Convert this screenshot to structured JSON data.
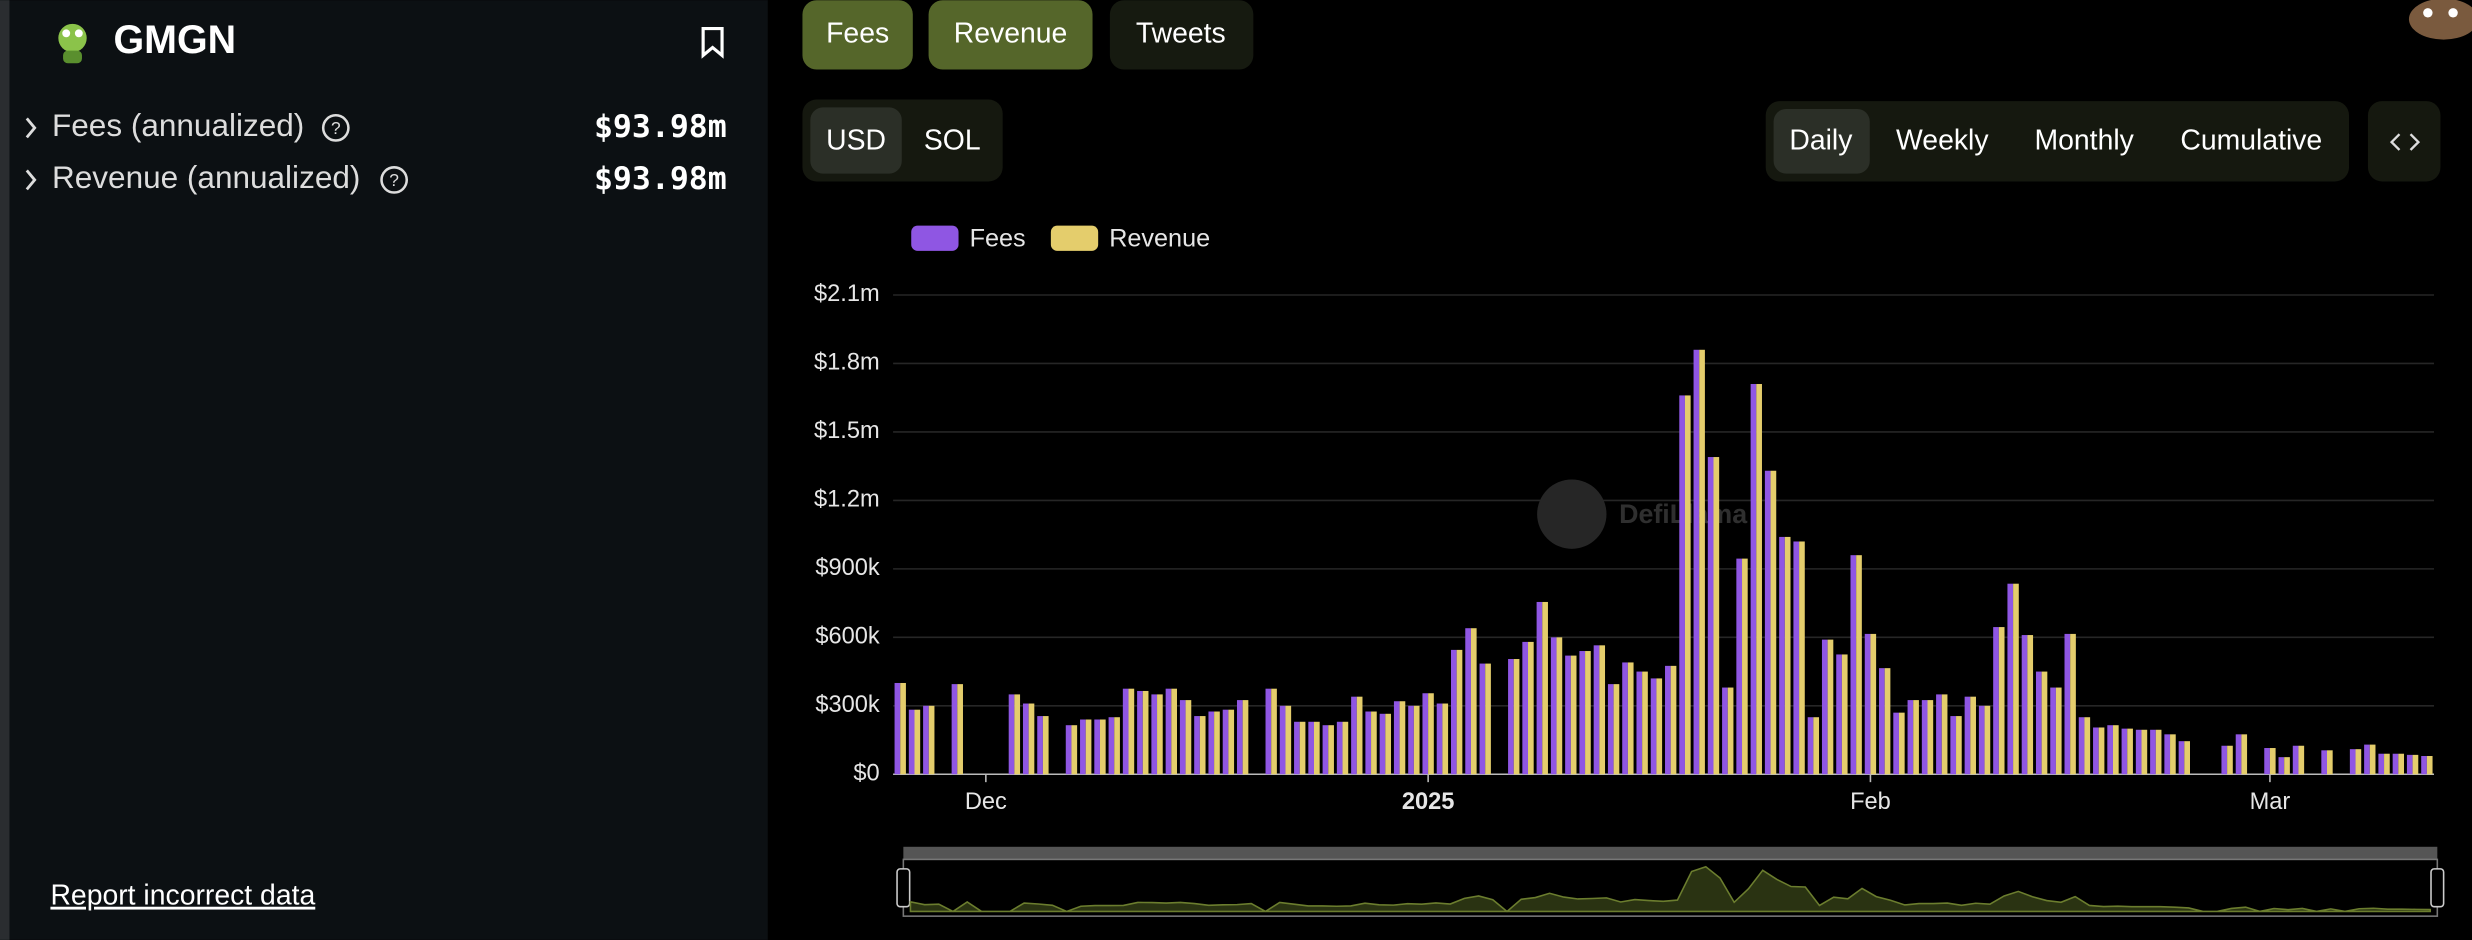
{
  "sidebar": {
    "title": "GMGN",
    "metrics": [
      {
        "label": "Fees (annualized)",
        "value": "$93.98m"
      },
      {
        "label": "Revenue (annualized)",
        "value": "$93.98m"
      }
    ],
    "report_link": "Report incorrect data"
  },
  "tabs": [
    "Fees",
    "Revenue",
    "Tweets"
  ],
  "currency_toggle": [
    "USD",
    "SOL"
  ],
  "period_toggle": [
    "Daily",
    "Weekly",
    "Monthly",
    "Cumulative"
  ],
  "watermark": "DefiLlama",
  "chart_data": {
    "type": "bar",
    "categories": [
      null,
      null,
      null,
      null,
      null,
      null,
      "Dec",
      null,
      null,
      null,
      null,
      null,
      null,
      null,
      null,
      null,
      null,
      null,
      null,
      null,
      null,
      null,
      null,
      null,
      null,
      null,
      null,
      null,
      null,
      null,
      null,
      null,
      null,
      null,
      null,
      null,
      null,
      "2025",
      null,
      null,
      null,
      null,
      null,
      null,
      null,
      null,
      null,
      null,
      null,
      null,
      null,
      null,
      null,
      null,
      null,
      null,
      null,
      null,
      null,
      null,
      null,
      null,
      null,
      null,
      null,
      null,
      null,
      null,
      "Feb",
      null,
      null,
      null,
      null,
      null,
      null,
      null,
      null,
      null,
      null,
      null,
      null,
      null,
      null,
      null,
      null,
      null,
      null,
      null,
      null,
      null,
      null,
      null,
      null,
      null,
      null,
      null,
      "Mar",
      null,
      null,
      null,
      null,
      null,
      null,
      null,
      null,
      null,
      null,
      null
    ],
    "series": [
      {
        "name": "Fees",
        "color": "#8f56e3",
        "values": [
          400000,
          283000,
          300000,
          0,
          395000,
          0,
          0,
          0,
          350000,
          310000,
          255000,
          0,
          215000,
          240000,
          240000,
          250000,
          375000,
          365000,
          350000,
          375000,
          325000,
          255000,
          275000,
          283000,
          325000,
          0,
          375000,
          300000,
          230000,
          230000,
          215000,
          230000,
          340000,
          275000,
          265000,
          320000,
          300000,
          355000,
          310000,
          545000,
          640000,
          485000,
          0,
          505000,
          580000,
          755000,
          600000,
          520000,
          540000,
          565000,
          395000,
          490000,
          450000,
          420000,
          475000,
          1660000,
          1860000,
          1390000,
          380000,
          945000,
          1710000,
          1330000,
          1040000,
          1020000,
          250000,
          590000,
          525000,
          960000,
          615000,
          465000,
          270000,
          325000,
          325000,
          350000,
          255000,
          340000,
          300000,
          645000,
          835000,
          610000,
          450000,
          380000,
          615000,
          250000,
          205000,
          215000,
          200000,
          195000,
          195000,
          175000,
          145000,
          0,
          0,
          125000,
          175000,
          0,
          115000,
          75000,
          125000,
          0,
          105000,
          0,
          110000,
          130000,
          90000,
          90000,
          85000,
          80000
        ]
      },
      {
        "name": "Revenue",
        "color": "#e4cd6c",
        "values": [
          400000,
          283000,
          300000,
          0,
          395000,
          0,
          0,
          0,
          350000,
          310000,
          255000,
          0,
          215000,
          240000,
          240000,
          250000,
          375000,
          365000,
          350000,
          375000,
          325000,
          255000,
          275000,
          283000,
          325000,
          0,
          375000,
          300000,
          230000,
          230000,
          215000,
          230000,
          340000,
          275000,
          265000,
          320000,
          300000,
          355000,
          310000,
          545000,
          640000,
          485000,
          0,
          505000,
          580000,
          755000,
          600000,
          520000,
          540000,
          565000,
          395000,
          490000,
          450000,
          420000,
          475000,
          1660000,
          1860000,
          1390000,
          380000,
          945000,
          1710000,
          1330000,
          1040000,
          1020000,
          250000,
          590000,
          525000,
          960000,
          615000,
          465000,
          270000,
          325000,
          325000,
          350000,
          255000,
          340000,
          300000,
          645000,
          835000,
          610000,
          450000,
          380000,
          615000,
          250000,
          205000,
          215000,
          200000,
          195000,
          195000,
          175000,
          145000,
          0,
          0,
          125000,
          175000,
          0,
          115000,
          75000,
          125000,
          0,
          105000,
          0,
          110000,
          130000,
          90000,
          90000,
          85000,
          80000
        ]
      }
    ],
    "ylim": [
      0,
      2100000
    ],
    "yticks": [
      {
        "value": 0,
        "label": "$0"
      },
      {
        "value": 300000,
        "label": "$300k"
      },
      {
        "value": 600000,
        "label": "$600k"
      },
      {
        "value": 900000,
        "label": "$900k"
      },
      {
        "value": 1200000,
        "label": "$1.2m"
      },
      {
        "value": 1500000,
        "label": "$1.5m"
      },
      {
        "value": 1800000,
        "label": "$1.8m"
      },
      {
        "value": 2100000,
        "label": "$2.1m"
      }
    ],
    "grid": true,
    "legend": "top-left"
  }
}
